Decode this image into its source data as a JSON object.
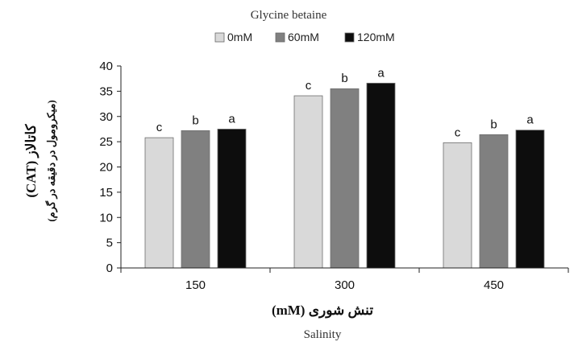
{
  "chart_data": {
    "type": "bar",
    "legend_title": "Glycine betaine",
    "legend_position": "top",
    "categories": [
      "150",
      "300",
      "450"
    ],
    "series": [
      {
        "name": "0mM",
        "color": "#d9d9d9",
        "values": [
          25.8,
          34.1,
          24.8
        ],
        "labels": [
          "c",
          "c",
          "c"
        ]
      },
      {
        "name": "60mM",
        "color": "#808080",
        "values": [
          27.2,
          35.5,
          26.4
        ],
        "labels": [
          "b",
          "b",
          "b"
        ]
      },
      {
        "name": "120mM",
        "color": "#0d0d0d",
        "values": [
          27.5,
          36.6,
          27.3
        ],
        "labels": [
          "a",
          "a",
          "a"
        ]
      }
    ],
    "xlabel": "(mM) تنش شوری",
    "xlabel_sub": "Salinity",
    "ylabel": "(CAT) کاتالاز",
    "ylabel_sub": "(میکرومول در دقیقه در گرم)",
    "ylim": [
      0,
      40
    ],
    "yticks": [
      "0",
      "5",
      "10",
      "15",
      "20",
      "25",
      "30",
      "35",
      "40"
    ],
    "grid": false
  }
}
